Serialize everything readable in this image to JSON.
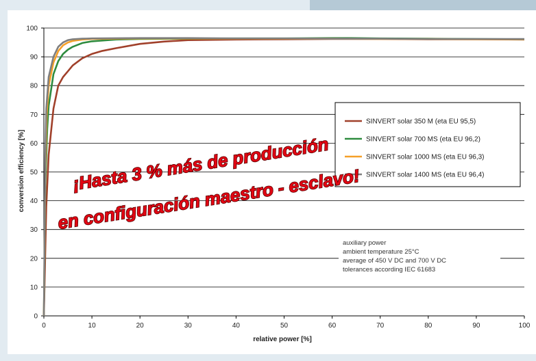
{
  "chart_data": {
    "type": "line",
    "xlabel": "relative power [%]",
    "ylabel": "conversion efficiency [%]",
    "xlim": [
      0,
      100
    ],
    "ylim": [
      0,
      100
    ],
    "x_ticks": [
      "0",
      "10",
      "20",
      "30",
      "40",
      "50",
      "60",
      "70",
      "80",
      "90",
      "100"
    ],
    "y_ticks": [
      "0",
      "10",
      "20",
      "30",
      "40",
      "50",
      "60",
      "70",
      "80",
      "90",
      "100"
    ],
    "grid": "horizontal",
    "legend_position": "right",
    "series": [
      {
        "name": "SINVERT solar 350 M (eta EU 95,5)",
        "color": "#a0402a",
        "points": [
          [
            0,
            0
          ],
          [
            0.5,
            38
          ],
          [
            1,
            56
          ],
          [
            2,
            72
          ],
          [
            3,
            80
          ],
          [
            4,
            83
          ],
          [
            5,
            85
          ],
          [
            6,
            87
          ],
          [
            8,
            89.5
          ],
          [
            10,
            91
          ],
          [
            12,
            92
          ],
          [
            15,
            93
          ],
          [
            20,
            94.5
          ],
          [
            25,
            95.3
          ],
          [
            30,
            95.8
          ],
          [
            40,
            96
          ],
          [
            50,
            96.1
          ],
          [
            60,
            96.2
          ],
          [
            70,
            96.2
          ],
          [
            80,
            96.1
          ],
          [
            90,
            96.1
          ],
          [
            100,
            96
          ]
        ]
      },
      {
        "name": "SINVERT solar 700 MS (eta EU 96,2)",
        "color": "#2e8b3e",
        "points": [
          [
            0,
            0
          ],
          [
            0.3,
            45
          ],
          [
            0.7,
            65
          ],
          [
            1,
            73
          ],
          [
            2,
            84
          ],
          [
            3,
            88.5
          ],
          [
            4,
            91
          ],
          [
            5,
            92.5
          ],
          [
            6,
            93.5
          ],
          [
            8,
            94.8
          ],
          [
            10,
            95.4
          ],
          [
            15,
            96
          ],
          [
            20,
            96.2
          ],
          [
            30,
            96.3
          ],
          [
            40,
            96.4
          ],
          [
            50,
            96.4
          ],
          [
            60,
            96.5
          ],
          [
            64,
            96.5
          ],
          [
            70,
            96.4
          ],
          [
            80,
            96.3
          ],
          [
            90,
            96.2
          ],
          [
            100,
            96.1
          ]
        ]
      },
      {
        "name": "SINVERT solar 1000 MS (eta EU 96,3)",
        "color": "#f5a028",
        "points": [
          [
            0,
            0
          ],
          [
            0.3,
            50
          ],
          [
            0.6,
            70
          ],
          [
            1,
            80
          ],
          [
            2,
            88
          ],
          [
            3,
            92
          ],
          [
            4,
            94
          ],
          [
            5,
            95
          ],
          [
            6,
            95.5
          ],
          [
            8,
            96
          ],
          [
            10,
            96.2
          ],
          [
            15,
            96.3
          ],
          [
            20,
            96.4
          ],
          [
            30,
            96.4
          ],
          [
            40,
            96.3
          ],
          [
            50,
            96.3
          ],
          [
            60,
            96.3
          ],
          [
            70,
            96.2
          ],
          [
            80,
            96.2
          ],
          [
            90,
            96.1
          ],
          [
            100,
            96.1
          ]
        ]
      },
      {
        "name": "SINVERT solar 1400 MS (eta EU 96,4)",
        "color": "#7f7f7f",
        "points": [
          [
            0,
            0
          ],
          [
            0.3,
            55
          ],
          [
            0.5,
            72
          ],
          [
            1,
            83
          ],
          [
            2,
            90
          ],
          [
            3,
            93.5
          ],
          [
            4,
            95
          ],
          [
            5,
            95.8
          ],
          [
            6,
            96.1
          ],
          [
            8,
            96.3
          ],
          [
            10,
            96.4
          ],
          [
            20,
            96.5
          ],
          [
            30,
            96.5
          ],
          [
            40,
            96.4
          ],
          [
            50,
            96.4
          ],
          [
            60,
            96.3
          ],
          [
            70,
            96.3
          ],
          [
            80,
            96.2
          ],
          [
            90,
            96.2
          ],
          [
            100,
            96.2
          ]
        ]
      }
    ],
    "annotation": [
      "auxiliary power",
      "ambient temperature 25°C",
      "average of 450 V DC and 700 V DC",
      "tolerances according IEC 61683"
    ],
    "overlay_text": [
      "¡Hasta 3 % más de producción",
      "en configuración maestro - esclavo!"
    ],
    "colors": {
      "background": "#e2ebf1",
      "overlay_text": "#e30613"
    }
  }
}
